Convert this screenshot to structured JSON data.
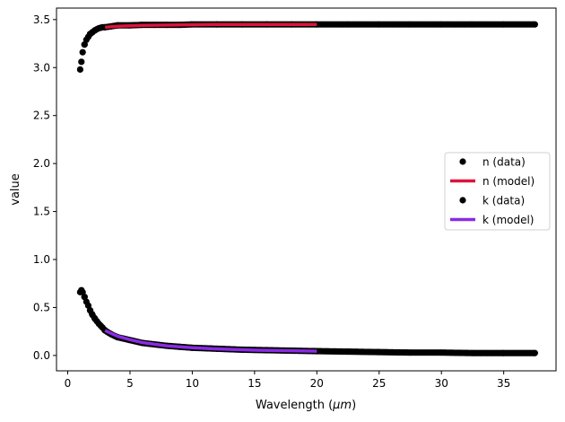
{
  "chart_data": {
    "type": "scatter",
    "xlabel": "Wavelength",
    "xlabel_unit": "μm",
    "ylabel": "value",
    "xlim": [
      -0.9,
      39.2
    ],
    "ylim": [
      -0.16,
      3.62
    ],
    "x_ticks": [
      0,
      5,
      10,
      15,
      20,
      25,
      30,
      35
    ],
    "y_ticks": [
      0.0,
      0.5,
      1.0,
      1.5,
      2.0,
      2.5,
      3.0,
      3.5
    ],
    "grid": false,
    "legend_position": "center-right",
    "colors": {
      "data": "#000000",
      "n_model": "#dc143c",
      "k_model": "#8a2be2"
    },
    "series": [
      {
        "name": "n (data)",
        "kind": "scatter",
        "x": [
          1.0,
          1.1,
          1.2,
          1.35,
          1.5,
          1.65,
          1.8,
          2.0,
          2.2,
          2.5,
          2.8,
          3.0,
          3.5,
          4.0,
          5.0,
          6.0,
          7.0,
          8.0,
          9.0,
          10.0,
          12.0,
          14.0,
          16.0,
          18.0,
          20.0,
          22.5,
          25.0,
          27.5,
          30.0,
          32.5,
          35.0,
          37.5
        ],
        "y": [
          2.98,
          3.06,
          3.16,
          3.24,
          3.29,
          3.32,
          3.35,
          3.37,
          3.39,
          3.41,
          3.42,
          3.42,
          3.43,
          3.44,
          3.44,
          3.445,
          3.445,
          3.445,
          3.445,
          3.45,
          3.45,
          3.45,
          3.45,
          3.45,
          3.45,
          3.45,
          3.45,
          3.45,
          3.45,
          3.45,
          3.45,
          3.45
        ]
      },
      {
        "name": "n (model)",
        "kind": "line",
        "x": [
          3.0,
          4.0,
          6.0,
          9.0,
          12.0,
          16.0,
          20.0
        ],
        "y": [
          3.42,
          3.43,
          3.44,
          3.445,
          3.45,
          3.45,
          3.45
        ]
      },
      {
        "name": "k (data)",
        "kind": "scatter",
        "x": [
          1.0,
          1.1,
          1.2,
          1.35,
          1.5,
          1.65,
          1.8,
          2.0,
          2.2,
          2.5,
          2.8,
          3.0,
          3.5,
          4.0,
          5.0,
          6.0,
          7.0,
          8.0,
          9.0,
          10.0,
          12.0,
          14.0,
          16.0,
          18.0,
          20.0,
          22.5,
          25.0,
          27.5,
          30.0,
          32.5,
          35.0,
          37.5
        ],
        "y": [
          0.66,
          0.68,
          0.66,
          0.61,
          0.56,
          0.52,
          0.47,
          0.42,
          0.38,
          0.33,
          0.29,
          0.26,
          0.22,
          0.19,
          0.16,
          0.13,
          0.115,
          0.1,
          0.09,
          0.08,
          0.07,
          0.06,
          0.055,
          0.05,
          0.045,
          0.04,
          0.035,
          0.03,
          0.03,
          0.025,
          0.025,
          0.025
        ]
      },
      {
        "name": "k (model)",
        "kind": "line",
        "x": [
          3.0,
          4.0,
          5.0,
          6.0,
          8.0,
          10.0,
          12.0,
          15.0,
          20.0
        ],
        "y": [
          0.26,
          0.2,
          0.165,
          0.135,
          0.1,
          0.08,
          0.068,
          0.055,
          0.045
        ]
      }
    ]
  }
}
